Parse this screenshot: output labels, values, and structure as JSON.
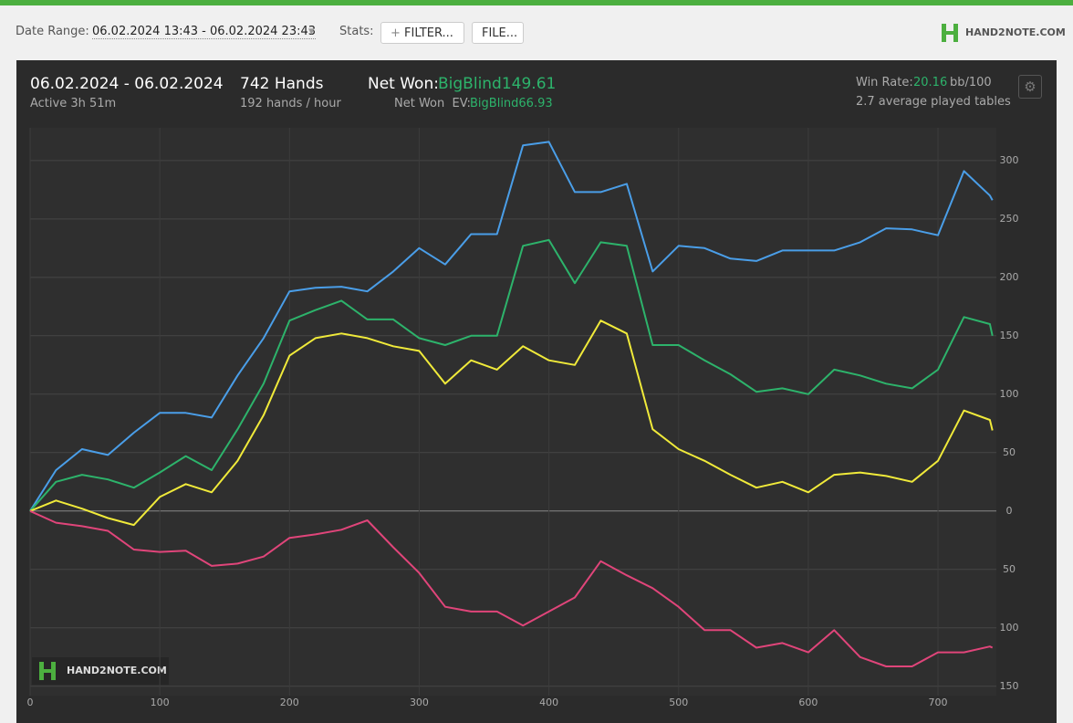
{
  "header": {
    "date_range_label": "Date Range:",
    "date_range": "06.02.2024 13:43 - 06.02.2024 23:43",
    "stats_label": "Stats:",
    "filter_button": "FILTER...",
    "file_button": "FILE...",
    "logo": "HAND2NOTE.COM"
  },
  "summary": {
    "dates": "06.02.2024 - 06.02.2024",
    "active": "Active 3h 51m",
    "hands": "742 Hands",
    "hands_per_hour": "192 hands / hour",
    "net_won_label": "Net Won:",
    "net_won": "BigBlind149.61",
    "net_won_ev_label": "Net Won  EV:",
    "net_won_ev": "BigBlind66.93",
    "win_rate_label": "Win Rate:",
    "win_rate": "20.16",
    "win_rate_unit": "bb/100",
    "tables": "2.7 average played tables"
  },
  "chart_data": {
    "type": "line",
    "watermark": "HAND2NOTE.COM",
    "x": [
      0,
      20,
      40,
      60,
      80,
      100,
      120,
      140,
      160,
      180,
      200,
      220,
      240,
      260,
      280,
      300,
      320,
      340,
      360,
      380,
      400,
      420,
      440,
      460,
      480,
      500,
      520,
      540,
      560,
      580,
      600,
      620,
      640,
      660,
      680,
      700,
      720,
      740,
      742
    ],
    "series": [
      {
        "color": "#4a9ee8",
        "values": [
          0,
          35,
          53,
          48,
          67,
          84,
          84,
          80,
          116,
          148,
          188,
          191,
          192,
          188,
          205,
          225,
          211,
          237,
          237,
          313,
          316,
          273,
          273,
          280,
          205,
          227,
          225,
          216,
          214,
          223,
          223,
          223,
          230,
          242,
          241,
          236,
          291,
          270,
          266
        ]
      },
      {
        "color": "#2db36b",
        "values": [
          0,
          25,
          31,
          27,
          20,
          33,
          47,
          35,
          70,
          109,
          163,
          172,
          180,
          164,
          164,
          148,
          142,
          150,
          150,
          227,
          232,
          195,
          230,
          227,
          142,
          142,
          129,
          117,
          102,
          105,
          100,
          121,
          116,
          109,
          105,
          121,
          166,
          160,
          150
        ]
      },
      {
        "color": "#f0ea3a",
        "values": [
          0,
          9,
          2,
          -6,
          -12,
          12,
          23,
          16,
          43,
          82,
          133,
          148,
          152,
          148,
          141,
          137,
          109,
          129,
          121,
          141,
          129,
          125,
          163,
          152,
          70,
          53,
          43,
          31,
          20,
          25,
          16,
          31,
          33,
          30,
          25,
          43,
          86,
          78,
          69
        ]
      },
      {
        "color": "#e0457a",
        "values": [
          0,
          -10,
          -13,
          -17,
          -33,
          -35,
          -34,
          -47,
          -45,
          -39,
          -23,
          -20,
          -16,
          -8,
          -31,
          -53,
          -82,
          -86,
          -86,
          -98,
          -86,
          -74,
          -43,
          -55,
          -66,
          -82,
          -102,
          -102,
          -117,
          -113,
          -121,
          -102,
          -125,
          -133,
          -133,
          -121,
          -121,
          -116,
          -117
        ]
      }
    ],
    "xlim": [
      0,
      745
    ],
    "ylim": [
      -158,
      328
    ],
    "xticks": [
      0,
      100,
      200,
      300,
      400,
      500,
      600,
      700
    ],
    "yticks": [
      300,
      250,
      200,
      150,
      100,
      50,
      0,
      {
        "value": -50,
        "label": "50"
      },
      {
        "value": -100,
        "label": "100"
      },
      {
        "value": -150,
        "label": "150"
      }
    ],
    "grid": true
  }
}
